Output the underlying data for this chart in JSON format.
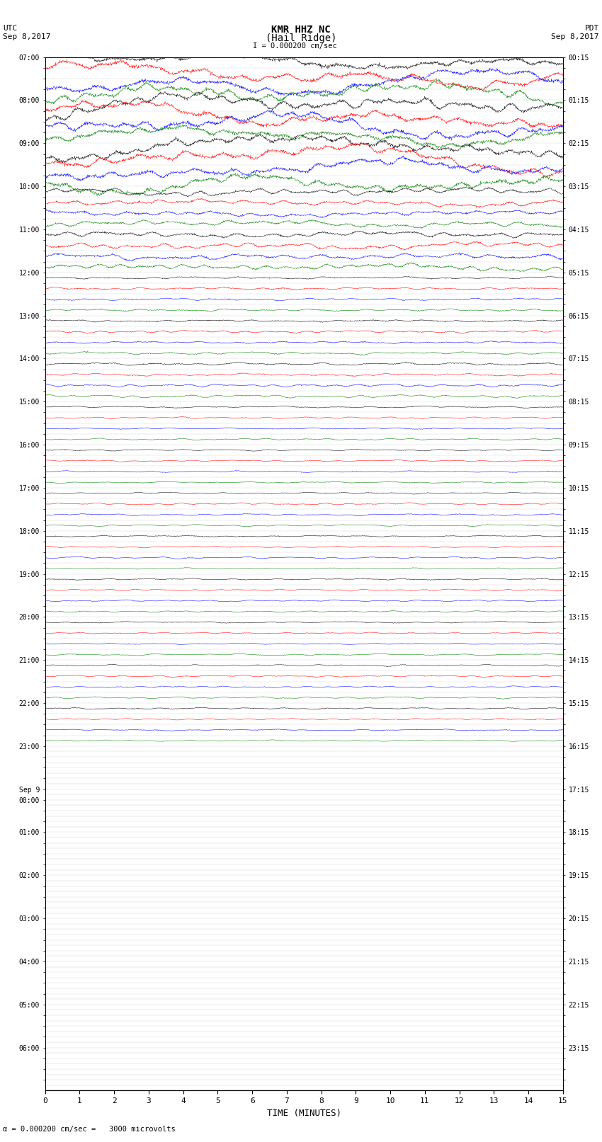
{
  "title_line1": "KMR HHZ NC",
  "title_line2": "(Hail Ridge)",
  "scale_label": "= 0.000200 cm/sec",
  "left_label": "UTC",
  "left_date": "Sep 8,2017",
  "right_label": "PDT",
  "right_date": "Sep 8,2017",
  "bottom_label": "TIME (MINUTES)",
  "bottom_note": "= 0.000200 cm/sec =   3000 microvolts",
  "xlabel_ticks": [
    0,
    1,
    2,
    3,
    4,
    5,
    6,
    7,
    8,
    9,
    10,
    11,
    12,
    13,
    14,
    15
  ],
  "figsize": [
    8.5,
    16.13
  ],
  "dpi": 100,
  "bgcolor": "#ffffff",
  "grid_color": "#aaaaaa",
  "colors": [
    "black",
    "red",
    "blue",
    "green"
  ],
  "n_rows": 96,
  "active_rows": 64,
  "left_times": [
    "07:00",
    "",
    "",
    "",
    "08:00",
    "",
    "",
    "",
    "09:00",
    "",
    "",
    "",
    "10:00",
    "",
    "",
    "",
    "11:00",
    "",
    "",
    "",
    "12:00",
    "",
    "",
    "",
    "13:00",
    "",
    "",
    "",
    "14:00",
    "",
    "",
    "",
    "15:00",
    "",
    "",
    "",
    "16:00",
    "",
    "",
    "",
    "17:00",
    "",
    "",
    "",
    "18:00",
    "",
    "",
    "",
    "19:00",
    "",
    "",
    "",
    "20:00",
    "",
    "",
    "",
    "21:00",
    "",
    "",
    "",
    "22:00",
    "",
    "",
    "",
    "23:00",
    "",
    "",
    "",
    "Sep 9",
    "00:00",
    "",
    "",
    "01:00",
    "",
    "",
    "",
    "02:00",
    "",
    "",
    "",
    "03:00",
    "",
    "",
    "",
    "04:00",
    "",
    "",
    "",
    "05:00",
    "",
    "",
    "",
    "06:00",
    "",
    "",
    ""
  ],
  "right_times": [
    "00:15",
    "",
    "",
    "",
    "01:15",
    "",
    "",
    "",
    "02:15",
    "",
    "",
    "",
    "03:15",
    "",
    "",
    "",
    "04:15",
    "",
    "",
    "",
    "05:15",
    "",
    "",
    "",
    "06:15",
    "",
    "",
    "",
    "07:15",
    "",
    "",
    "",
    "08:15",
    "",
    "",
    "",
    "09:15",
    "",
    "",
    "",
    "10:15",
    "",
    "",
    "",
    "11:15",
    "",
    "",
    "",
    "12:15",
    "",
    "",
    "",
    "13:15",
    "",
    "",
    "",
    "14:15",
    "",
    "",
    "",
    "15:15",
    "",
    "",
    "",
    "16:15",
    "",
    "",
    "",
    "17:15",
    "",
    "",
    "",
    "18:15",
    "",
    "",
    "",
    "19:15",
    "",
    "",
    "",
    "20:15",
    "",
    "",
    "",
    "21:15",
    "",
    "",
    "",
    "22:15",
    "",
    "",
    "",
    "23:15",
    "",
    "",
    ""
  ]
}
